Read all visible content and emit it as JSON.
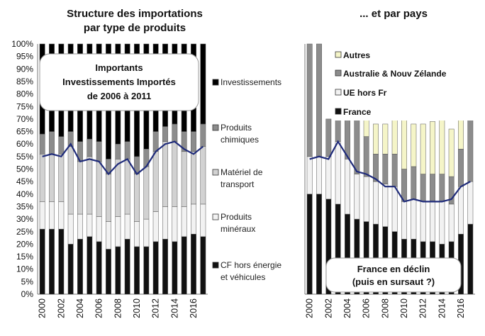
{
  "chart_data": [
    {
      "type": "bar",
      "stacked": true,
      "title": "Structure des importations par type de produits",
      "title_lines": [
        "Structure des importations",
        "par type de produits"
      ],
      "ylim": [
        0,
        100
      ],
      "yticks": [
        "0%",
        "5%",
        "10%",
        "15%",
        "20%",
        "25%",
        "30%",
        "35%",
        "40%",
        "45%",
        "50%",
        "55%",
        "60%",
        "65%",
        "70%",
        "75%",
        "80%",
        "85%",
        "90%",
        "95%",
        "100%"
      ],
      "x_labels": [
        "2000",
        "2002",
        "2004",
        "2006",
        "2008",
        "2010",
        "2012",
        "2014",
        "2016"
      ],
      "categories": [
        "2000",
        "2001",
        "2002",
        "2003",
        "2004",
        "2005",
        "2006",
        "2007",
        "2008",
        "2009",
        "2010",
        "2011",
        "2012",
        "2013",
        "2014",
        "2015",
        "2016",
        "2017"
      ],
      "series": [
        {
          "name": "CF hors énergie et véhicules",
          "label_lines": [
            "CF hors énergie",
            "et véhicules"
          ],
          "color": "#111111",
          "values": [
            26,
            26,
            26,
            20,
            22,
            23,
            21,
            18,
            19,
            22,
            19,
            19,
            21,
            22,
            21,
            23,
            24,
            23
          ]
        },
        {
          "name": "Produits minéraux",
          "label_lines": [
            "Produits",
            "minéraux"
          ],
          "color": "#f2f2f2",
          "values": [
            11,
            11,
            11,
            12,
            10,
            9,
            10,
            11,
            12,
            10,
            10,
            11,
            12,
            13,
            14,
            12,
            12,
            13
          ]
        },
        {
          "name": "Matériel de transport",
          "label_lines": [
            "Matériel de",
            "transport"
          ],
          "color": "#d2d2d2",
          "values": [
            19,
            19,
            19,
            27,
            21,
            23,
            22,
            19,
            23,
            22,
            19,
            21,
            24,
            26,
            26,
            22,
            21,
            23
          ]
        },
        {
          "name": "Produits chimiques",
          "label_lines": [
            "Produits",
            "chimiques"
          ],
          "color": "#8c8c8c",
          "values": [
            8,
            9,
            7,
            6,
            8,
            7,
            8,
            6,
            6,
            7,
            7,
            7,
            8,
            6,
            7,
            8,
            8,
            9
          ]
        },
        {
          "name": "Investissements",
          "label_lines": [
            "Investissements"
          ],
          "color": "#000000",
          "values": [
            36,
            35,
            37,
            35,
            39,
            38,
            39,
            46,
            40,
            39,
            45,
            42,
            35,
            33,
            32,
            35,
            35,
            32
          ]
        }
      ],
      "line": {
        "name": "Investissements (courbe)",
        "color": "#1f2b7a",
        "values": [
          55,
          56,
          55,
          60,
          53,
          54,
          53,
          48,
          52,
          54,
          48,
          51,
          57,
          60,
          61,
          58,
          56,
          59
        ]
      },
      "annotation": [
        "Importants",
        "Investissements Importés",
        "de 2006 à 2011"
      ]
    },
    {
      "type": "bar",
      "stacked": true,
      "title": "... et par pays",
      "ylim": [
        0,
        100
      ],
      "x_labels": [
        "2000",
        "2002",
        "2004",
        "2006",
        "2008",
        "2010",
        "2012",
        "2014",
        "2016"
      ],
      "categories": [
        "2000",
        "2001",
        "2002",
        "2003",
        "2004",
        "2005",
        "2006",
        "2007",
        "2008",
        "2009",
        "2010",
        "2011",
        "2012",
        "2013",
        "2014",
        "2015",
        "2016",
        "2017"
      ],
      "series": [
        {
          "name": "France",
          "color": "#111111",
          "values": [
            40,
            40,
            38,
            36,
            32,
            30,
            29,
            28,
            27,
            25,
            22,
            22,
            21,
            21,
            20,
            21,
            24,
            28
          ]
        },
        {
          "name": "UE hors Fr",
          "color": "#f2f2f2",
          "values": [
            15,
            15,
            17,
            25,
            22,
            18,
            18,
            17,
            17,
            18,
            15,
            16,
            16,
            16,
            17,
            15,
            19,
            17
          ]
        },
        {
          "name": "Australie & Nouv Zélande",
          "color": "#8c8c8c",
          "values": [
            45,
            45,
            15,
            9,
            16,
            22,
            16,
            11,
            12,
            13,
            13,
            13,
            11,
            11,
            11,
            11,
            15,
            25
          ]
        },
        {
          "name": "Autres",
          "color": "#f5f5c8",
          "values": [
            0,
            0,
            0,
            0,
            0,
            0,
            7,
            12,
            12,
            14,
            20,
            17,
            20,
            21,
            22,
            19,
            12,
            0
          ]
        }
      ],
      "line": {
        "name": "France (courbe)",
        "color": "#1f2b7a",
        "values": [
          54,
          55,
          54,
          61,
          55,
          49,
          48,
          46,
          43,
          43,
          37,
          38,
          37,
          37,
          37,
          38,
          43,
          45
        ]
      },
      "annotation": [
        "France en déclin",
        "(puis en sursaut ?)"
      ]
    }
  ]
}
